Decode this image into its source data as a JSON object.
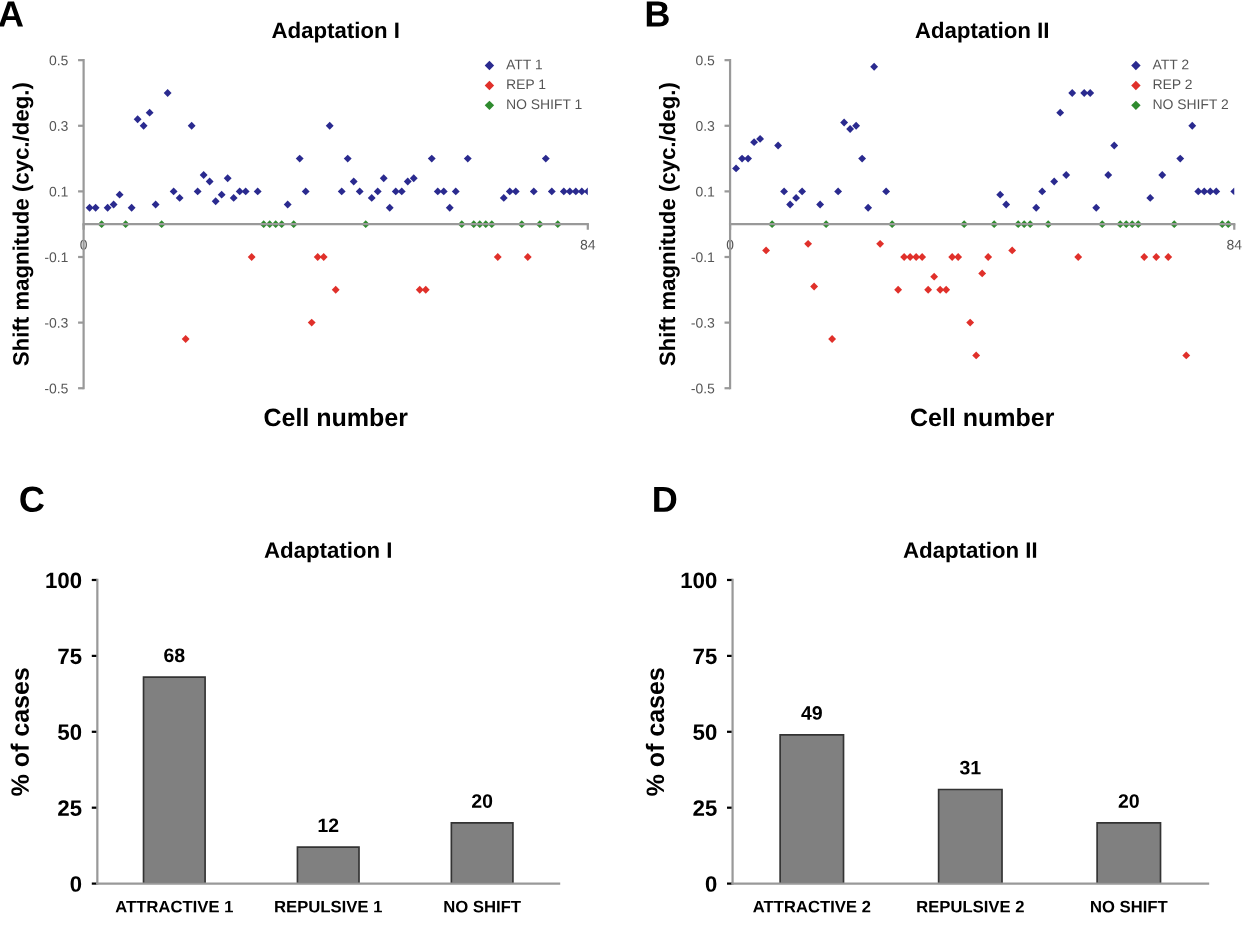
{
  "chart_data": [
    {
      "type": "scatter",
      "title": "Adaptation I",
      "annotations": [
        "A"
      ],
      "xlabel": "Cell number",
      "ylabel": "Shift magnitude (cyc./deg.)",
      "xlim": [
        0,
        84
      ],
      "xticks": [
        0,
        84
      ],
      "ylim": [
        -0.5,
        0.5
      ],
      "yticks": [
        -0.5,
        -0.3,
        -0.1,
        0.1,
        0.3,
        0.5
      ],
      "legend": "top right",
      "marker": "diamond",
      "series": [
        {
          "name": "ATT 1",
          "color": "#2a2a8f",
          "x": [
            1,
            2,
            4,
            5,
            6,
            8,
            9,
            10,
            11,
            12,
            14,
            15,
            16,
            18,
            19,
            20,
            21,
            22,
            23,
            24,
            25,
            26,
            27,
            29,
            34,
            36,
            37,
            41,
            43,
            44,
            45,
            46,
            48,
            49,
            50,
            51,
            52,
            53,
            54,
            55,
            58,
            59,
            60,
            61,
            62,
            64,
            70,
            71,
            72,
            75,
            77,
            78,
            80,
            81,
            82,
            83,
            84
          ],
          "values": [
            0.05,
            0.05,
            0.05,
            0.06,
            0.09,
            0.05,
            0.32,
            0.3,
            0.34,
            0.06,
            0.4,
            0.1,
            0.08,
            0.3,
            0.1,
            0.15,
            0.13,
            0.07,
            0.09,
            0.14,
            0.08,
            0.1,
            0.1,
            0.1,
            0.06,
            0.2,
            0.1,
            0.3,
            0.1,
            0.2,
            0.13,
            0.1,
            0.08,
            0.1,
            0.14,
            0.05,
            0.1,
            0.1,
            0.13,
            0.14,
            0.2,
            0.1,
            0.1,
            0.05,
            0.1,
            0.2,
            0.08,
            0.1,
            0.1,
            0.1,
            0.2,
            0.1,
            0.1,
            0.1,
            0.1,
            0.1,
            0.1
          ]
        },
        {
          "name": "REP 1",
          "color": "#e0302a",
          "x": [
            17,
            28,
            38,
            39,
            40,
            42,
            56,
            57,
            69,
            74
          ],
          "values": [
            -0.35,
            -0.1,
            -0.3,
            -0.1,
            -0.1,
            -0.2,
            -0.2,
            -0.2,
            -0.1,
            -0.1
          ]
        },
        {
          "name": "NO SHIFT 1",
          "color": "#2e8b2e",
          "x": [
            3,
            7,
            13,
            30,
            31,
            32,
            33,
            35,
            47,
            63,
            65,
            66,
            67,
            68,
            73,
            76,
            79
          ],
          "values": [
            0,
            0,
            0,
            0,
            0,
            0,
            0,
            0,
            0,
            0,
            0,
            0,
            0,
            0,
            0,
            0,
            0
          ]
        }
      ]
    },
    {
      "type": "scatter",
      "title": "Adaptation II",
      "annotations": [
        "B"
      ],
      "xlabel": "Cell number",
      "ylabel": "Shift magnitude (cyc./deg.)",
      "xlim": [
        0,
        84
      ],
      "xticks": [
        0,
        84
      ],
      "ylim": [
        -0.5,
        0.5
      ],
      "yticks": [
        -0.5,
        -0.3,
        -0.1,
        0.1,
        0.3,
        0.5
      ],
      "legend": "top right",
      "marker": "diamond",
      "series": [
        {
          "name": "ATT 2",
          "color": "#2a2a8f",
          "x": [
            1,
            2,
            3,
            4,
            5,
            8,
            9,
            10,
            11,
            12,
            15,
            18,
            19,
            20,
            21,
            22,
            23,
            24,
            26,
            45,
            46,
            51,
            52,
            54,
            55,
            56,
            57,
            59,
            60,
            61,
            63,
            64,
            70,
            72,
            75,
            77,
            78,
            79,
            80,
            81,
            84
          ],
          "values": [
            0.17,
            0.2,
            0.2,
            0.25,
            0.26,
            0.24,
            0.1,
            0.06,
            0.08,
            0.1,
            0.06,
            0.1,
            0.31,
            0.29,
            0.3,
            0.2,
            0.05,
            0.48,
            0.1,
            0.09,
            0.06,
            0.05,
            0.1,
            0.13,
            0.34,
            0.15,
            0.4,
            0.4,
            0.4,
            0.05,
            0.15,
            0.24,
            0.08,
            0.15,
            0.2,
            0.3,
            0.1,
            0.1,
            0.1,
            0.1,
            0.1
          ]
        },
        {
          "name": "REP 2",
          "color": "#e0302a",
          "x": [
            6,
            13,
            14,
            17,
            25,
            28,
            29,
            30,
            31,
            32,
            33,
            34,
            35,
            36,
            37,
            38,
            40,
            41,
            42,
            43,
            47,
            58,
            69,
            71,
            73,
            76
          ],
          "values": [
            -0.08,
            -0.06,
            -0.19,
            -0.35,
            -0.06,
            -0.2,
            -0.1,
            -0.1,
            -0.1,
            -0.1,
            -0.2,
            -0.16,
            -0.2,
            -0.2,
            -0.1,
            -0.1,
            -0.3,
            -0.4,
            -0.15,
            -0.1,
            -0.08,
            -0.1,
            -0.1,
            -0.1,
            -0.1,
            -0.4
          ]
        },
        {
          "name": "NO SHIFT 2",
          "color": "#2e8b2e",
          "x": [
            7,
            16,
            27,
            39,
            44,
            48,
            49,
            50,
            53,
            62,
            65,
            66,
            67,
            68,
            74,
            82,
            83
          ],
          "values": [
            0,
            0,
            0,
            0,
            0,
            0,
            0,
            0,
            0,
            0,
            0,
            0,
            0,
            0,
            0,
            0,
            0
          ]
        }
      ]
    },
    {
      "type": "bar",
      "title": "Adaptation I",
      "annotations": [
        "C"
      ],
      "ylabel": "% of cases",
      "categories": [
        "ATTRACTIVE 1",
        "REPULSIVE 1",
        "NO SHIFT"
      ],
      "values": [
        68,
        12,
        20
      ],
      "color": "#808080",
      "ylim": [
        0,
        100
      ],
      "yticks": [
        0,
        25,
        50,
        75,
        100
      ],
      "data_labels": true
    },
    {
      "type": "bar",
      "title": "Adaptation II",
      "annotations": [
        "D"
      ],
      "ylabel": "% of cases",
      "categories": [
        "ATTRACTIVE 2",
        "REPULSIVE 2",
        "NO SHIFT"
      ],
      "values": [
        49,
        31,
        20
      ],
      "color": "#808080",
      "ylim": [
        0,
        100
      ],
      "yticks": [
        0,
        25,
        50,
        75,
        100
      ],
      "data_labels": true
    }
  ]
}
